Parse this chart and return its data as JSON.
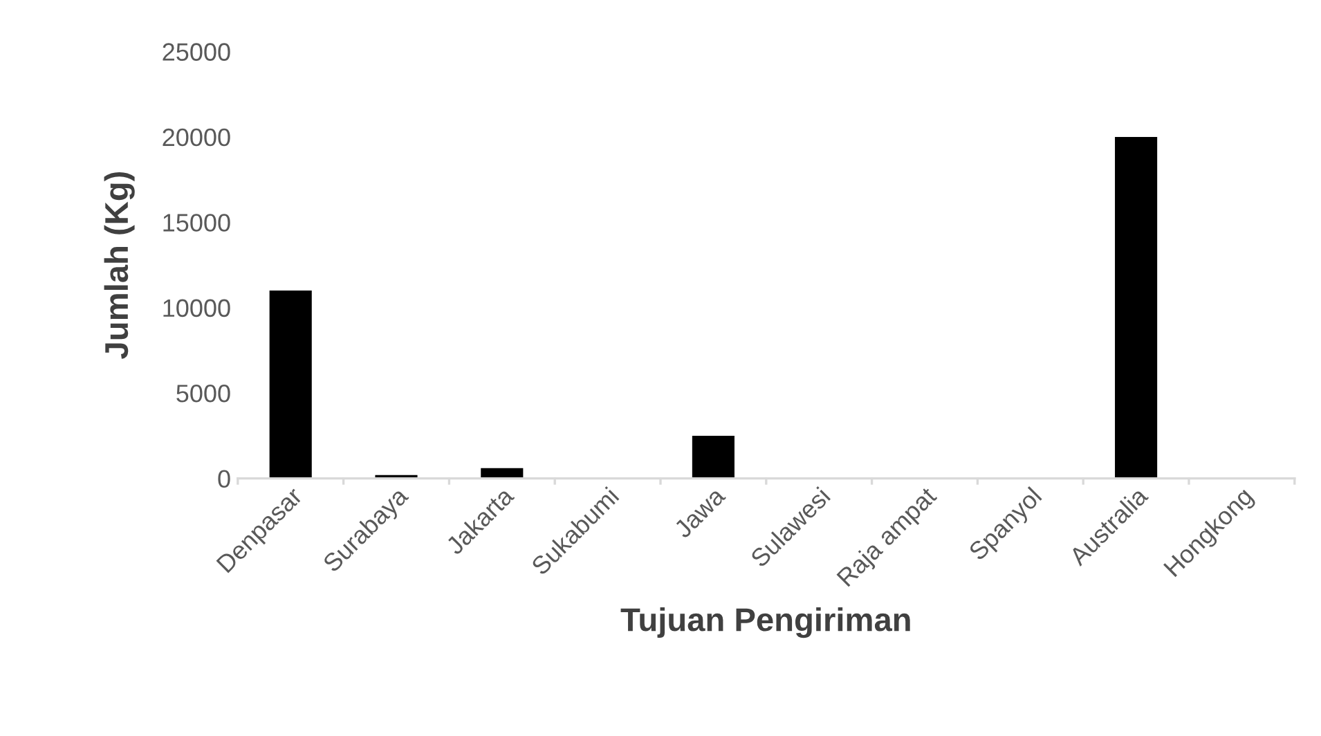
{
  "chart_data": {
    "type": "bar",
    "xlabel": "Tujuan Pengiriman",
    "ylabel": "Jumlah (Kg)",
    "categories": [
      "Denpasar",
      "Surabaya",
      "Jakarta",
      "Sukabumi",
      "Jawa",
      "Sulawesi",
      "Raja ampat",
      "Spanyol",
      "Australia",
      "Hongkong"
    ],
    "values": [
      11000,
      200,
      600,
      null,
      2500,
      null,
      null,
      null,
      20000,
      null
    ],
    "color": "#000000",
    "ylim": [
      0,
      25000
    ],
    "yticks": [
      0,
      5000,
      10000,
      15000,
      20000,
      25000
    ],
    "grid": false
  }
}
